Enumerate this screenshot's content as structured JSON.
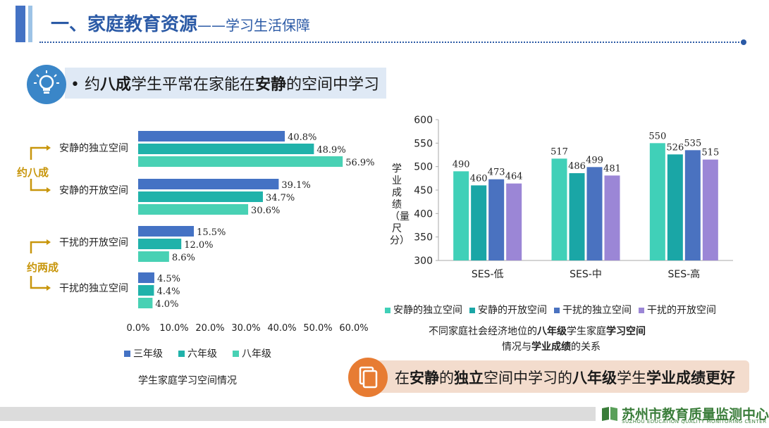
{
  "header": {
    "title_main": "一、家庭教育资源",
    "title_sub": "——学习生活保障"
  },
  "headline": {
    "bullet": "•",
    "p1": "约",
    "p2": "八成",
    "p3": "学生平常在家能在",
    "p4": "安静",
    "p5": "的空间中学习"
  },
  "left_groups": {
    "group1": "约八成",
    "group2": "约两成"
  },
  "conclusion": {
    "p1": "在",
    "p2": "安静",
    "p3": "的",
    "p4": "独立",
    "p5": "空间中学习的",
    "p6": "八年级",
    "p7": "学生",
    "p8": "学业成绩更好"
  },
  "footer": {
    "org": "苏州市教育质量监测中心",
    "org_en": "SUZHOU EDUCATION QUALITY MONITORING CENTER"
  },
  "colors": {
    "grade3": "#4472c4",
    "grade6": "#20b2aa",
    "grade8": "#48d1b4",
    "quiet_independent": "#40d0b8",
    "quiet_open": "#1aa6a6",
    "noisy_independent": "#4a72c0",
    "noisy_open": "#9b86d6"
  },
  "chart_data": [
    {
      "type": "bar",
      "orientation": "horizontal",
      "title": "学生家庭学习空间情况",
      "categories": [
        "安静的独立空间",
        "安静的开放空间",
        "干扰的开放空间",
        "干扰的独立空间"
      ],
      "series": [
        {
          "name": "三年级",
          "values": [
            40.8,
            39.1,
            15.5,
            4.5
          ],
          "labels": [
            "40.8%",
            "39.1%",
            "15.5%",
            "4.5%"
          ]
        },
        {
          "name": "六年级",
          "values": [
            48.9,
            34.7,
            12.0,
            4.4
          ],
          "labels": [
            "48.9%",
            "34.7%",
            "12.0%",
            "4.4%"
          ]
        },
        {
          "name": "八年级",
          "values": [
            56.9,
            30.6,
            8.6,
            4.0
          ],
          "labels": [
            "56.9%",
            "30.6%",
            "8.6%",
            "4.0%"
          ]
        }
      ],
      "xlim": [
        0,
        60
      ],
      "xticks": [
        "0.0%",
        "10.0%",
        "20.0%",
        "30.0%",
        "40.0%",
        "50.0%",
        "60.0%"
      ],
      "legend": "bottom"
    },
    {
      "type": "bar",
      "title": "不同家庭社会经济地位的八年级学生家庭学习空间情况与学业成绩的关系",
      "title_parts": {
        "l1a": "不同家庭社会经济地位的",
        "l1b": "八年级",
        "l1c": "学生家庭",
        "l1d": "学习空间",
        "l2a": "情况与",
        "l2b": "学业成绩",
        "l2c": "的关系"
      },
      "categories": [
        "SES-低",
        "SES-中",
        "SES-高"
      ],
      "series": [
        {
          "name": "安静的独立空间",
          "values": [
            490,
            517,
            550
          ]
        },
        {
          "name": "安静的开放空间",
          "values": [
            460,
            486,
            526
          ]
        },
        {
          "name": "干扰的独立空间",
          "values": [
            473,
            499,
            535
          ]
        },
        {
          "name": "干扰的开放空间",
          "values": [
            464,
            481,
            515
          ]
        }
      ],
      "ylabel": "学业成绩（量尺分）",
      "ylim": [
        300,
        600
      ],
      "yticks": [
        "300",
        "350",
        "400",
        "450",
        "500",
        "550",
        "600"
      ],
      "legend": "bottom"
    }
  ]
}
